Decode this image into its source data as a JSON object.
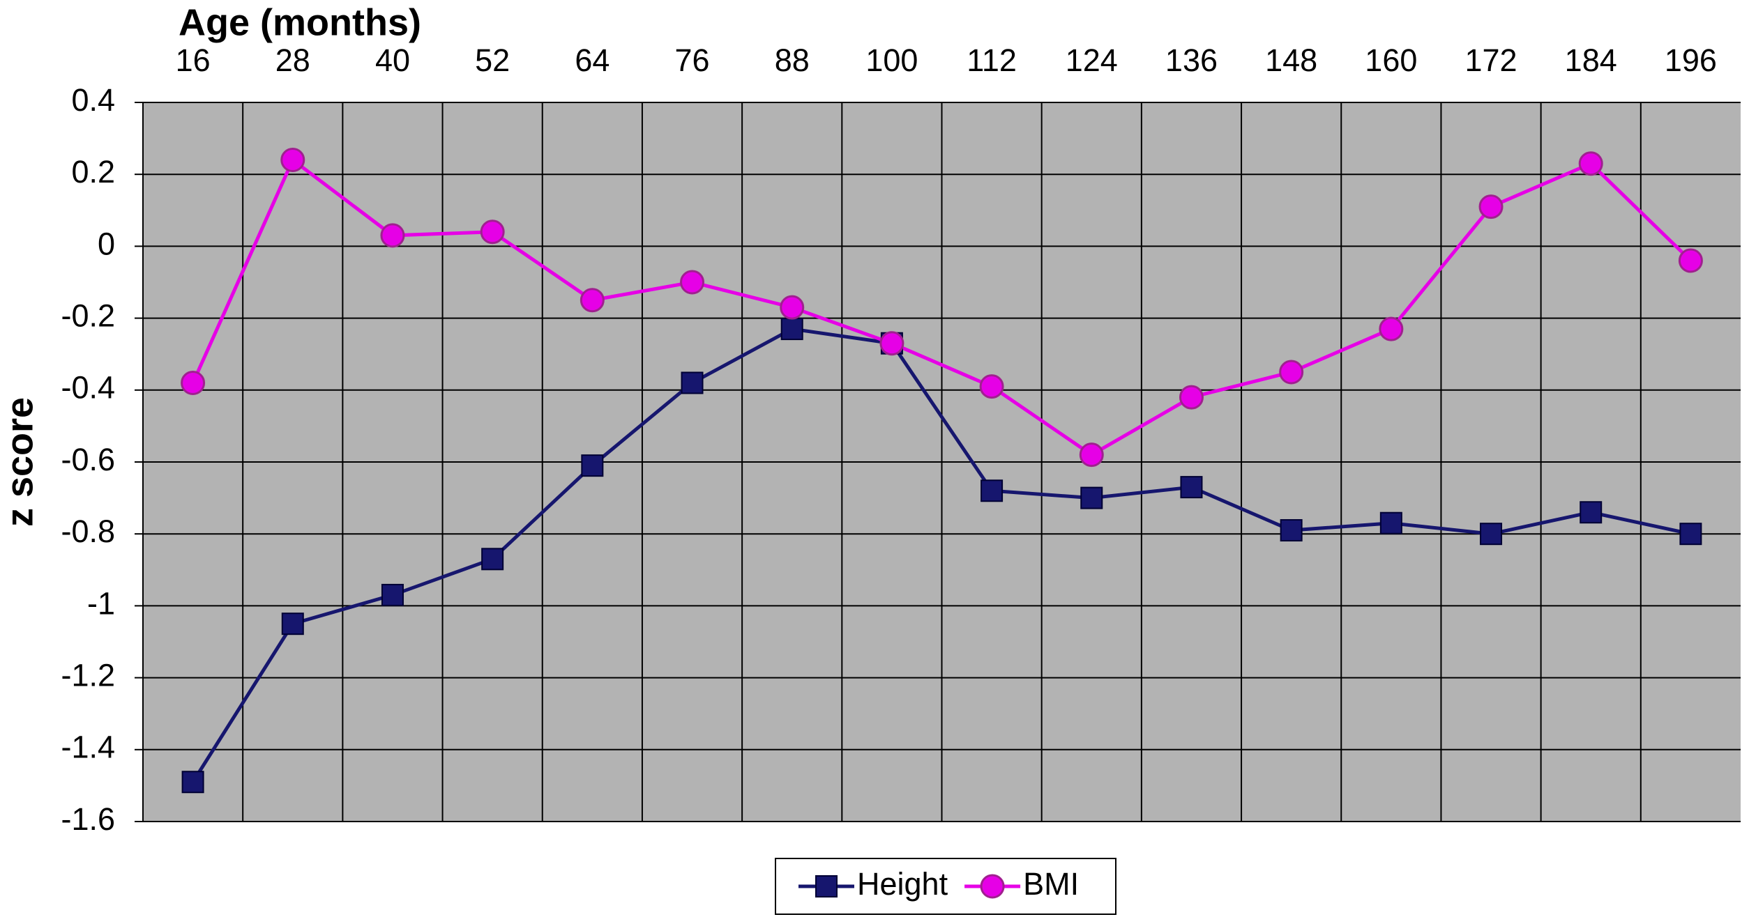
{
  "chart_data": {
    "type": "line",
    "x_axis_label": "Age (months)",
    "y_axis_label": "z score",
    "categories": [
      "16",
      "28",
      "40",
      "52",
      "64",
      "76",
      "88",
      "100",
      "112",
      "124",
      "136",
      "148",
      "160",
      "172",
      "184",
      "196"
    ],
    "series": [
      {
        "name": "Height",
        "color": "#16166e",
        "marker": "square",
        "values": [
          -1.49,
          -1.05,
          -0.97,
          -0.87,
          -0.61,
          -0.38,
          -0.23,
          -0.27,
          -0.68,
          -0.7,
          -0.67,
          -0.79,
          -0.77,
          -0.8,
          -0.74,
          -0.8
        ]
      },
      {
        "name": "BMI",
        "color": "#e600e6",
        "marker": "circle",
        "values": [
          -0.38,
          0.24,
          0.03,
          0.04,
          -0.15,
          -0.1,
          -0.17,
          -0.27,
          -0.39,
          -0.58,
          -0.42,
          -0.35,
          -0.23,
          0.11,
          0.23,
          -0.04
        ]
      }
    ],
    "ylim": [
      -1.6,
      0.4
    ],
    "yticks": [
      -1.6,
      -1.4,
      -1.2,
      -1,
      -0.8,
      -0.6,
      -0.4,
      -0.2,
      0,
      0.2,
      0.4
    ],
    "grid": true,
    "legend": "bottom"
  }
}
